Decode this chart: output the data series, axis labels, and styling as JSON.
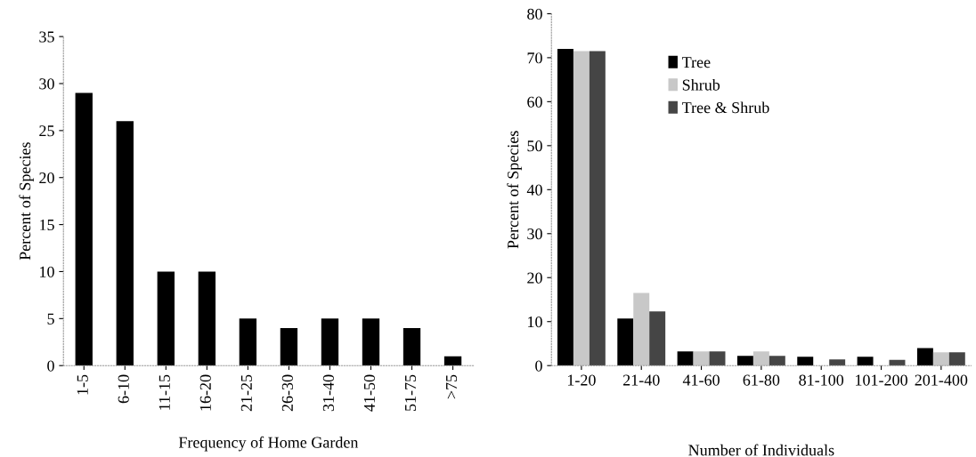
{
  "chart_data": [
    {
      "type": "bar",
      "xlabel": "Frequency of Home Garden",
      "ylabel": "Percent of Species",
      "categories": [
        "1-5",
        "6-10",
        "11-15",
        "16-20",
        "21-25",
        "26-30",
        "31-40",
        "41-50",
        "51-75",
        ">75"
      ],
      "values": [
        29,
        26,
        10,
        10,
        5,
        4,
        5,
        5,
        4,
        1
      ],
      "color": "#000000",
      "ylim": [
        0,
        35
      ],
      "yticks": [
        0,
        5,
        10,
        15,
        20,
        25,
        30,
        35
      ],
      "grid": false,
      "legend": false
    },
    {
      "type": "bar",
      "xlabel": "Number of Individuals",
      "ylabel": "Percent of Species",
      "categories": [
        "1-20",
        "21-40",
        "41-60",
        "61-80",
        "81-100",
        "101-200",
        "201-400"
      ],
      "series": [
        {
          "name": "Tree",
          "color": "#000000",
          "values": [
            72,
            10.7,
            3.2,
            2.2,
            2,
            2,
            4
          ]
        },
        {
          "name": "Shrub",
          "color": "#c8c8c8",
          "values": [
            71.5,
            16.5,
            3.2,
            3.2,
            0,
            0,
            3
          ]
        },
        {
          "name": "Tree & Shrub",
          "color": "#454545",
          "values": [
            71.5,
            12.3,
            3.2,
            2.2,
            1.4,
            1.3,
            3
          ]
        }
      ],
      "ylim": [
        0,
        80
      ],
      "yticks": [
        0,
        10,
        20,
        30,
        40,
        50,
        60,
        70,
        80
      ],
      "grid": false,
      "legend": "top"
    }
  ]
}
